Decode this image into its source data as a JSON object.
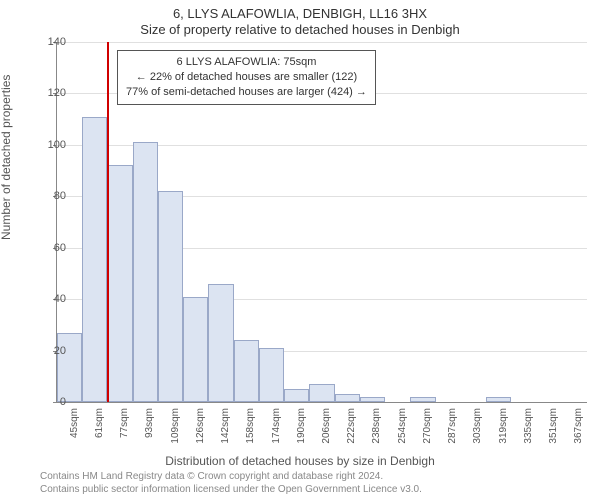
{
  "title_main": "6, LLYS ALAFOWLIA, DENBIGH, LL16 3HX",
  "title_sub": "Size of property relative to detached houses in Denbigh",
  "ylabel": "Number of detached properties",
  "xlabel": "Distribution of detached houses by size in Denbigh",
  "footer_line1": "Contains HM Land Registry data © Crown copyright and database right 2024.",
  "footer_line2": "Contains public sector information licensed under the Open Government Licence v3.0.",
  "chart": {
    "type": "histogram",
    "ylim": [
      0,
      140
    ],
    "ytick_step": 20,
    "grid_color": "#e0e0e0",
    "bar_fill": "#dce4f2",
    "bar_border": "#9aa8c8",
    "marker_color": "#d00000",
    "background": "#ffffff",
    "xticks": [
      "45sqm",
      "61sqm",
      "77sqm",
      "93sqm",
      "109sqm",
      "126sqm",
      "142sqm",
      "158sqm",
      "174sqm",
      "190sqm",
      "206sqm",
      "222sqm",
      "238sqm",
      "254sqm",
      "270sqm",
      "287sqm",
      "303sqm",
      "319sqm",
      "335sqm",
      "351sqm",
      "367sqm"
    ],
    "values": [
      27,
      111,
      92,
      101,
      82,
      41,
      46,
      24,
      21,
      5,
      7,
      3,
      2,
      0,
      2,
      0,
      0,
      2,
      0,
      0,
      0
    ],
    "marker_bin_edge": 2,
    "annotation": {
      "line1": "6 LLYS ALAFOWLIA: 75sqm",
      "line2": "← 22% of detached houses are smaller (122)",
      "line3": "77% of semi-detached houses are larger (424) →"
    }
  }
}
